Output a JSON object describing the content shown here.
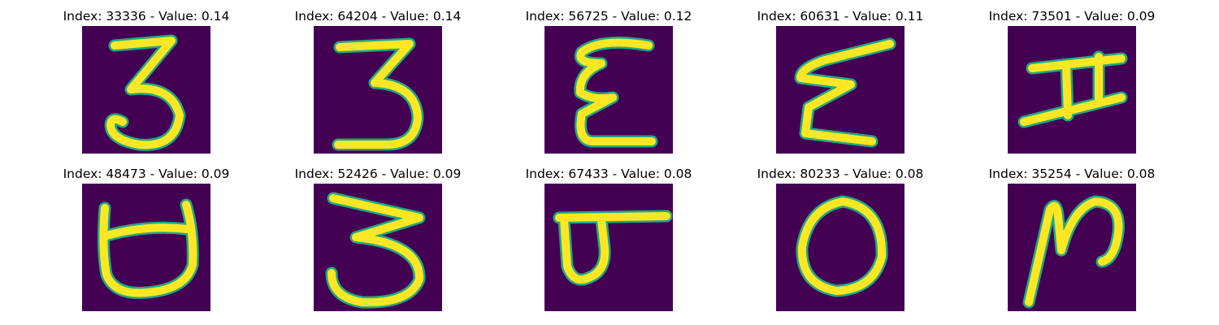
{
  "colormap": {
    "background": "#440154",
    "mid": "#22a884",
    "high": "#fde725"
  },
  "panels": [
    {
      "title": "Index: 33336 - Value: 0.14",
      "glyph": "digit-3"
    },
    {
      "title": "Index: 64204 - Value: 0.14",
      "glyph": "digit-3-flat-top"
    },
    {
      "title": "Index: 56725 - Value: 0.12",
      "glyph": "curly-e"
    },
    {
      "title": "Index: 60631 - Value: 0.11",
      "glyph": "zigzag-e"
    },
    {
      "title": "Index: 73501 - Value: 0.09",
      "glyph": "h-shape"
    },
    {
      "title": "Index: 48473 - Value: 0.09",
      "glyph": "cup-shape"
    },
    {
      "title": "Index: 52426 - Value: 0.09",
      "glyph": "wavy-3"
    },
    {
      "title": "Index: 67433 - Value: 0.08",
      "glyph": "flag-shape"
    },
    {
      "title": "Index: 80233 - Value: 0.08",
      "glyph": "zero"
    },
    {
      "title": "Index: 35254 - Value: 0.08",
      "glyph": "n-shape"
    }
  ]
}
